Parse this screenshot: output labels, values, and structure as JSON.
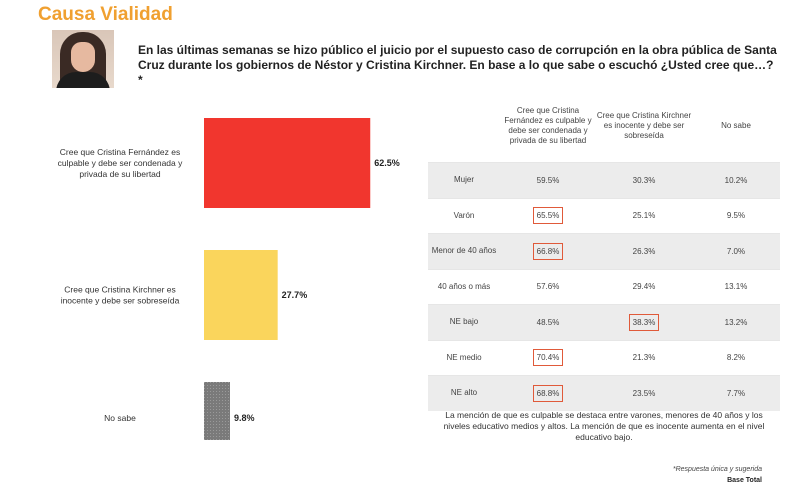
{
  "title": "Causa Vialidad",
  "question": "En las últimas semanas se hizo público el juicio por el supuesto caso de corrupción en la obra pública de Santa Cruz durante los gobiernos de Néstor y Cristina Kirchner. En base a lo que sabe o escuchó ¿Usted cree que…? *",
  "colors": {
    "accent": "#f0a030",
    "red": "#f1362e",
    "yellow": "#fad55c",
    "gray": "#777777",
    "highlight": "#e05a3a"
  },
  "chart_data": [
    {
      "type": "bar",
      "orientation": "horizontal",
      "categories": [
        "Cree que Cristina Fernández es culpable y debe ser condenada y privada de su libertad",
        "Cree que Cristina Kirchner es inocente y debe ser sobreseída",
        "No sabe"
      ],
      "values": [
        62.5,
        27.7,
        9.8
      ],
      "labels": [
        "62.5%",
        "27.7%",
        "9.8%"
      ],
      "colors": [
        "#f1362e",
        "#fad55c",
        "#777777"
      ]
    },
    {
      "type": "table",
      "columns": [
        "",
        "Cree que Cristina Fernández es culpable y debe ser condenada y privada de su libertad",
        "Cree que Cristina Kirchner es inocente y debe ser sobreseída",
        "No sabe"
      ],
      "rows": [
        {
          "label": "Mujer",
          "values": [
            "59.5%",
            "30.3%",
            "10.2%"
          ]
        },
        {
          "label": "Varón",
          "values": [
            "65.5%",
            "25.1%",
            "9.5%"
          ]
        },
        {
          "label": "Menor de 40 años",
          "values": [
            "66.8%",
            "26.3%",
            "7.0%"
          ]
        },
        {
          "label": "40 años o más",
          "values": [
            "57.6%",
            "29.4%",
            "13.1%"
          ]
        },
        {
          "label": "NE bajo",
          "values": [
            "48.5%",
            "38.3%",
            "13.2%"
          ]
        },
        {
          "label": "NE medio",
          "values": [
            "70.4%",
            "21.3%",
            "8.2%"
          ]
        },
        {
          "label": "NE alto",
          "values": [
            "68.8%",
            "23.5%",
            "7.7%"
          ]
        }
      ]
    }
  ],
  "note": "La mención de que es culpable se destaca entre varones, menores de 40 años y los niveles educativo medios y altos. La mención de que es inocente aumenta en el nivel educativo bajo.",
  "footnote": "*Respuesta única y sugerida",
  "base": "Base Total"
}
